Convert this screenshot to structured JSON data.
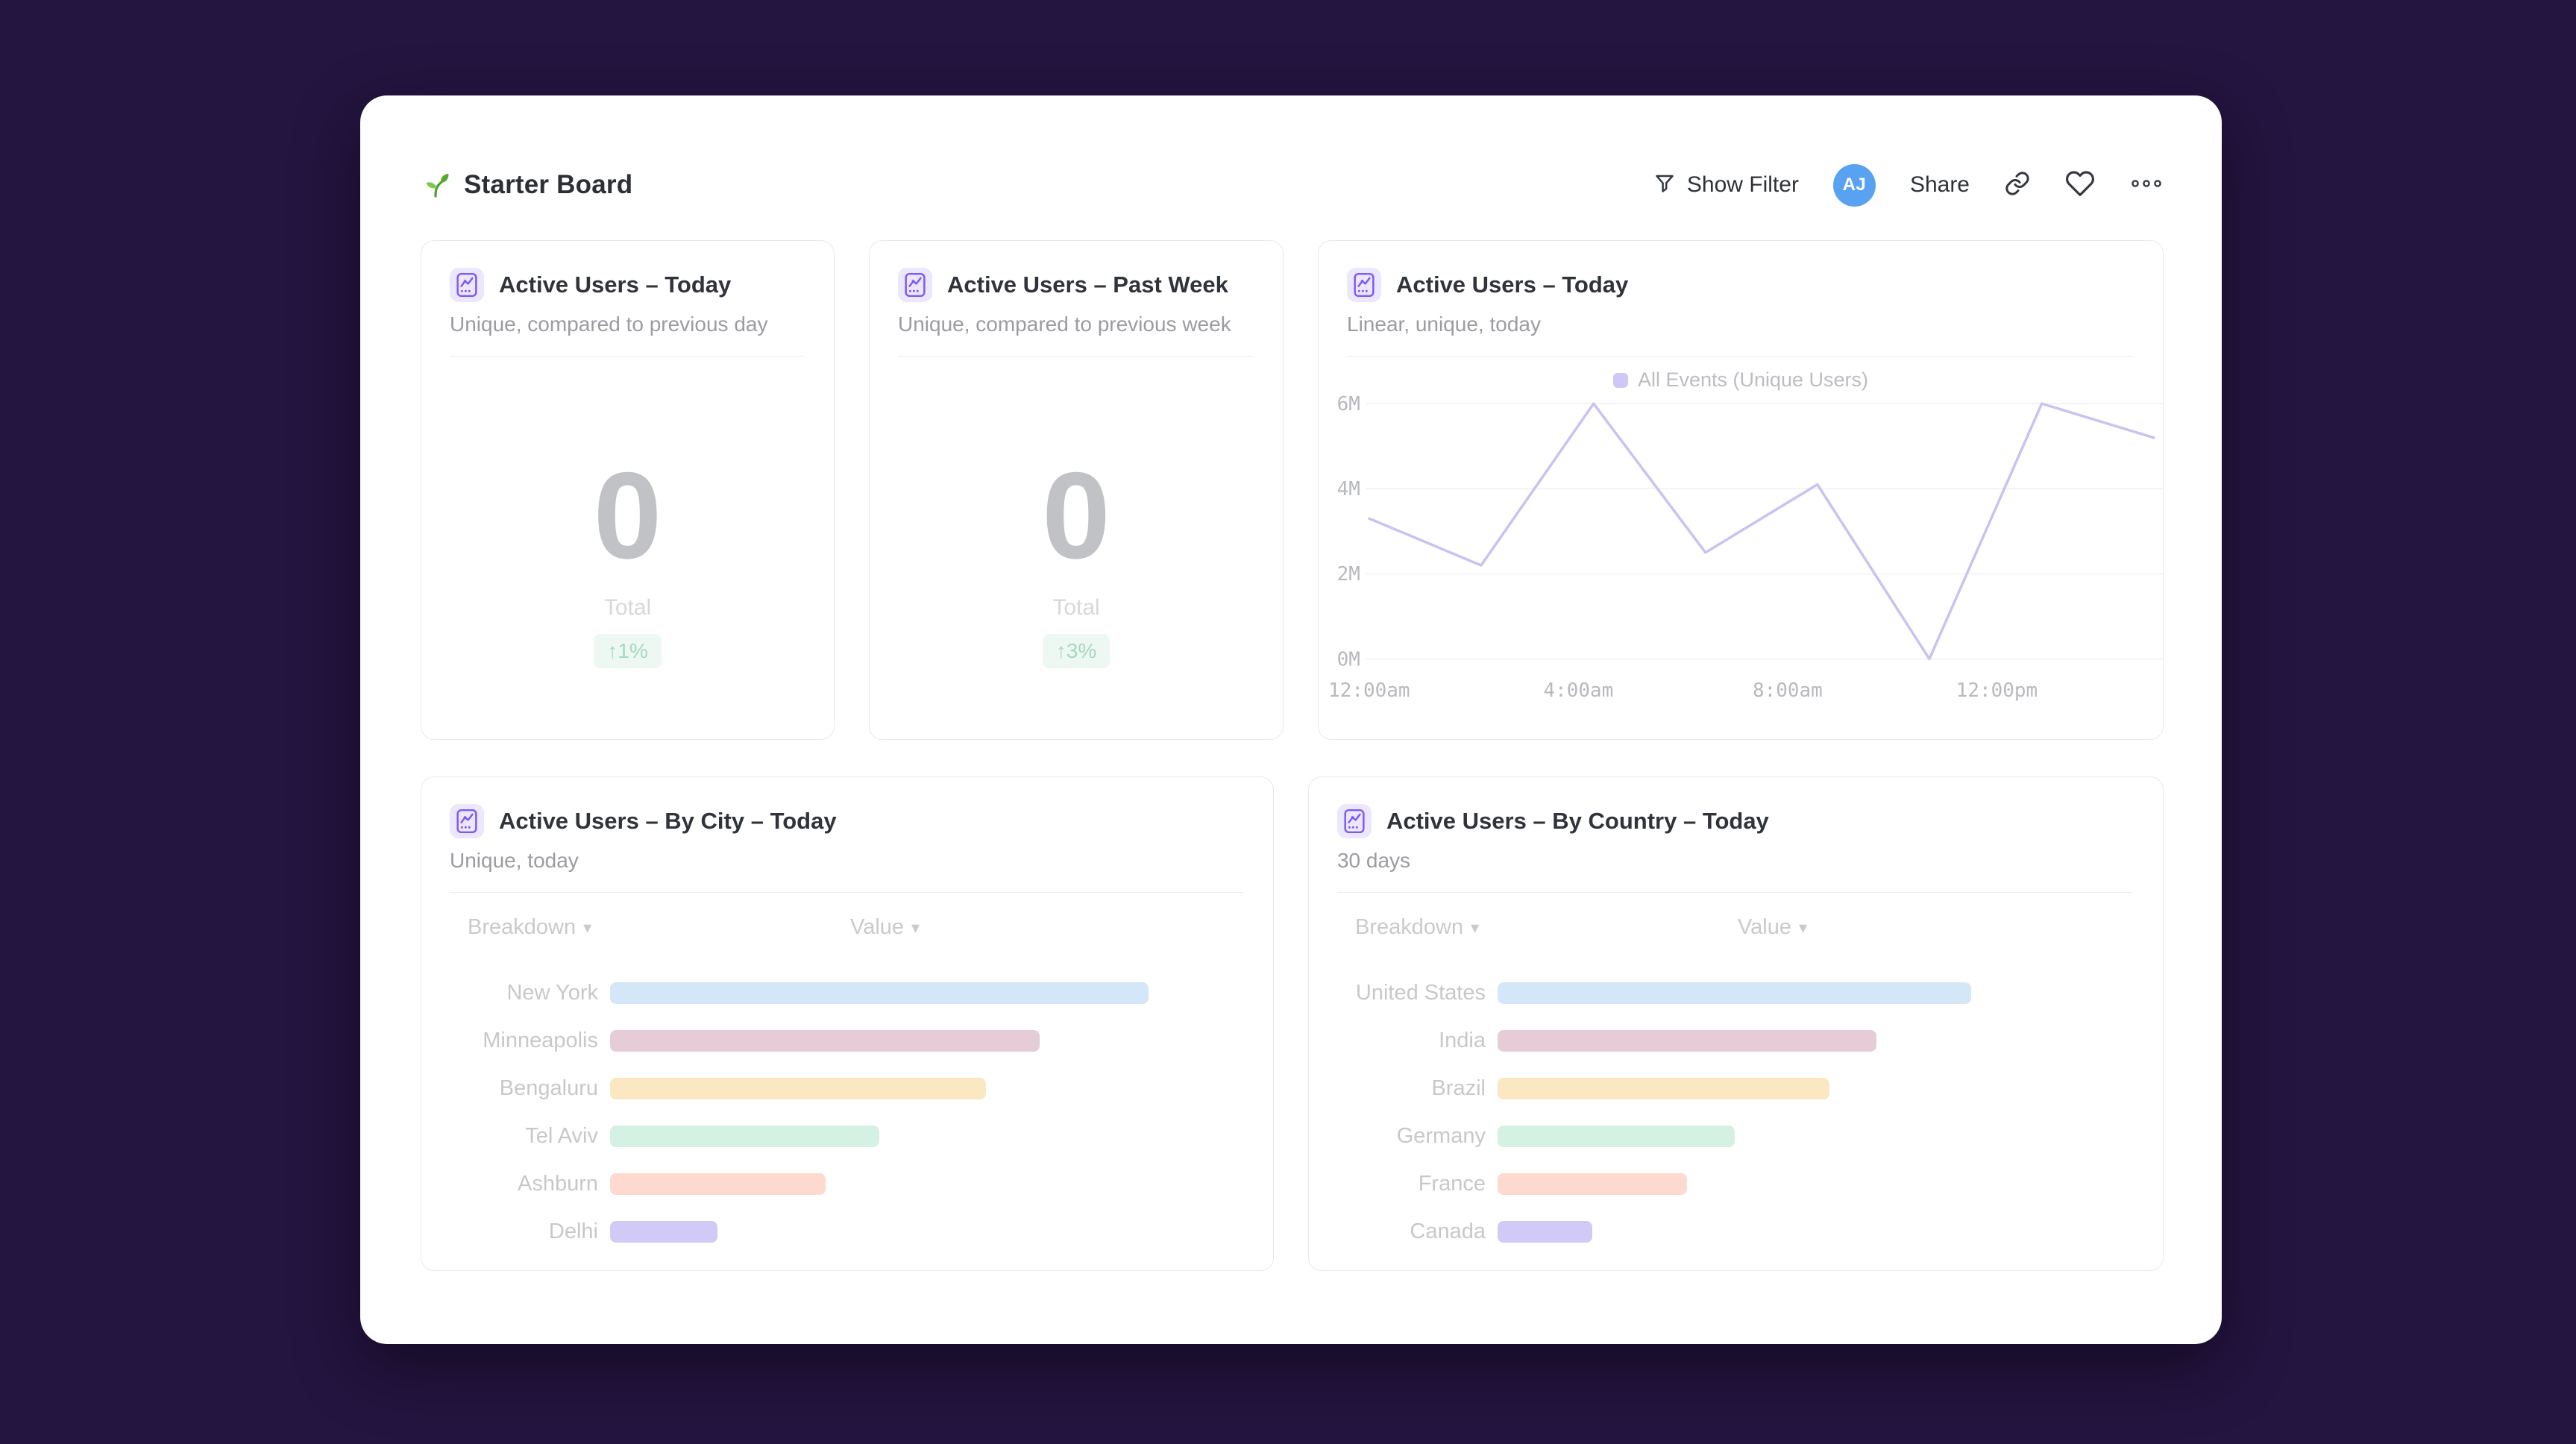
{
  "colors": {
    "background": "#241440",
    "accent_purple": "#7c5af6",
    "icon_bg": "#ece7fd",
    "avatar_blue": "#58a2f1",
    "badge_green_text": "#a5d8c1",
    "badge_green_bg": "#eef8f3",
    "line": "#c9c2f2",
    "legend_swatch": "#cfc8f6"
  },
  "glyphs": {
    "caret": "▾"
  },
  "header": {
    "title": "Starter Board",
    "show_filter": "Show Filter",
    "avatar_initials": "AJ",
    "share": "Share",
    "icons": [
      "seedling-icon",
      "funnel-icon",
      "link-icon",
      "heart-icon",
      "ellipsis-icon"
    ]
  },
  "cards": {
    "kpi": [
      {
        "title": "Active Users – Today",
        "subtitle": "Unique, compared to previous day",
        "value": "0",
        "total_label": "Total",
        "change": "↑1%"
      },
      {
        "title": "Active Users – Past Week",
        "subtitle": "Unique, compared to previous week",
        "value": "0",
        "total_label": "Total",
        "change": "↑3%"
      }
    ],
    "line": {
      "title": "Active Users – Today",
      "subtitle": "Linear, unique, today"
    },
    "city": {
      "title": "Active Users – By City – Today",
      "subtitle": "Unique, today",
      "columns": {
        "breakdown": "Breakdown",
        "value": "Value"
      },
      "rows": [
        {
          "label": "New York",
          "pct": 85.0,
          "color": "#d3e7f8"
        },
        {
          "label": "Minneapolis",
          "pct": 67.8,
          "color": "#e5ccd7"
        },
        {
          "label": "Bengaluru",
          "pct": 59.4,
          "color": "#fbe8c2"
        },
        {
          "label": "Tel Aviv",
          "pct": 42.5,
          "color": "#d4f1e3"
        },
        {
          "label": "Ashburn",
          "pct": 34.0,
          "color": "#fdd9d0"
        },
        {
          "label": "Delhi",
          "pct": 17.0,
          "color": "#d1c9f6"
        }
      ]
    },
    "country": {
      "title": "Active Users – By Country – Today",
      "subtitle": "30 days",
      "columns": {
        "breakdown": "Breakdown",
        "value": "Value"
      },
      "rows": [
        {
          "label": "United States",
          "pct": 74.5,
          "color": "#d3e7f8"
        },
        {
          "label": "India",
          "pct": 59.6,
          "color": "#e5ccd7"
        },
        {
          "label": "Brazil",
          "pct": 52.2,
          "color": "#fbe8c2"
        },
        {
          "label": "Germany",
          "pct": 37.3,
          "color": "#d4f1e3"
        },
        {
          "label": "France",
          "pct": 29.8,
          "color": "#fdd9d0"
        },
        {
          "label": "Canada",
          "pct": 14.9,
          "color": "#d1c9f6"
        }
      ]
    }
  },
  "chart_data": {
    "type": "line",
    "title": "Active Users – Today",
    "legend_position": "top-center",
    "grid": true,
    "unit": "M",
    "ylim": [
      0,
      6.2
    ],
    "x_hours": [
      0,
      2.14,
      4.29,
      6.43,
      8.57,
      10.71,
      12.86,
      15
    ],
    "series": [
      {
        "name": "All Events (Unique Users)",
        "values": [
          3.3,
          2.2,
          6.0,
          2.5,
          4.1,
          0.0,
          6.0,
          5.2
        ]
      }
    ],
    "xticks": [
      {
        "h": 0,
        "label": "12:00am"
      },
      {
        "h": 4,
        "label": "4:00am"
      },
      {
        "h": 8,
        "label": "8:00am"
      },
      {
        "h": 12,
        "label": "12:00pm"
      }
    ],
    "yticks": [
      {
        "v": 0,
        "label": "0M"
      },
      {
        "v": 2,
        "label": "2M"
      },
      {
        "v": 4,
        "label": "4M"
      },
      {
        "v": 6,
        "label": "6M"
      }
    ]
  }
}
